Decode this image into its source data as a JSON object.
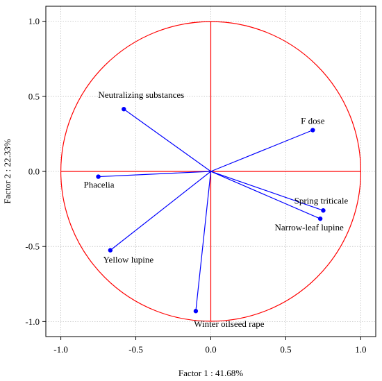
{
  "chart_data": {
    "type": "scatter",
    "subtype": "pca-correlation-circle",
    "xlabel": "Factor 1 : 41.68%",
    "ylabel": "Factor 2 : 22.33%",
    "xlim": [
      -1.1,
      1.1
    ],
    "ylim": [
      -1.1,
      1.1
    ],
    "xticks": [
      "-1.0",
      "-0.5",
      "0.0",
      "0.5",
      "1.0"
    ],
    "yticks": [
      "-1.0",
      "-0.5",
      "0.0",
      "0.5",
      "1.0"
    ],
    "grid": true,
    "unit_circle": true,
    "colors": {
      "vectors": "#0000ff",
      "circle": "#ff0000",
      "grid": "#bfbfbf"
    },
    "points": [
      {
        "label": "Neutralizing substances",
        "x": -0.58,
        "y": 0.415
      },
      {
        "label": "F dose",
        "x": 0.68,
        "y": 0.275
      },
      {
        "label": "Phacelia",
        "x": -0.75,
        "y": -0.035
      },
      {
        "label": "Spring triticale",
        "x": 0.75,
        "y": -0.26
      },
      {
        "label": "Narrow-leaf lupine",
        "x": 0.73,
        "y": -0.315
      },
      {
        "label": "Yellow lupine",
        "x": -0.67,
        "y": -0.525
      },
      {
        "label": "Winter oilseed rape",
        "x": -0.1,
        "y": -0.93
      }
    ]
  }
}
